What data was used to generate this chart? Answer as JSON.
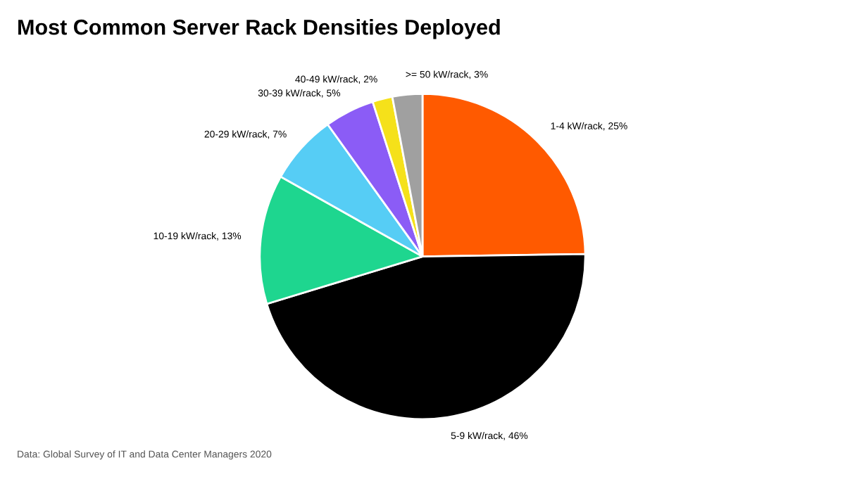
{
  "chart_data": {
    "type": "pie",
    "title": "Most Common Server Rack Densities Deployed",
    "annotations": [
      "Data: Global Survey of IT and Data Center Managers 2020"
    ],
    "categories": [
      "1-4 kW/rack",
      "5-9 kW/rack",
      "10-19 kW/rack",
      "20-29 kW/rack",
      "30-39 kW/rack",
      "40-49 kW/rack",
      ">= 50 kW/rack"
    ],
    "values": [
      25,
      46,
      13,
      7,
      5,
      2,
      3
    ],
    "value_labels": [
      "25%",
      "46%",
      "13%",
      "7%",
      "5%",
      "2%",
      "3%"
    ],
    "colors": [
      "#ff5a00",
      "#000000",
      "#1ed68f",
      "#56cdf5",
      "#8b5cf6",
      "#f5e11a",
      "#a0a0a0"
    ],
    "legend": false
  }
}
